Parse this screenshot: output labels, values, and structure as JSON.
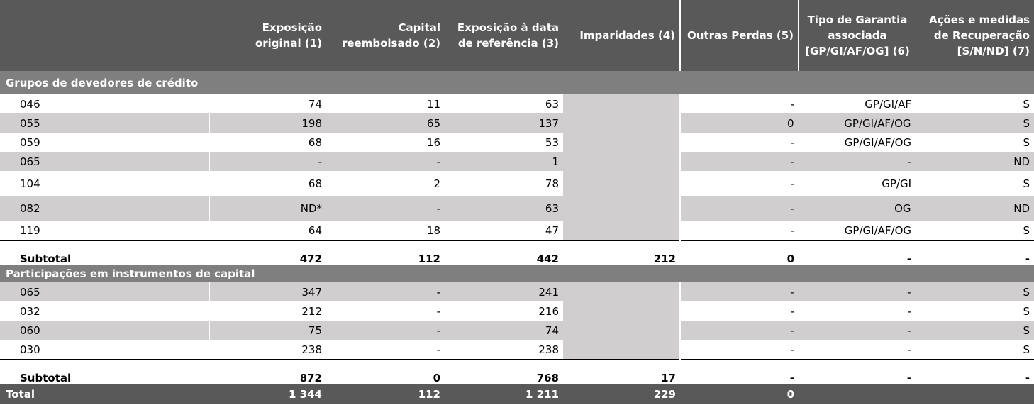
{
  "columns": {
    "c1": "Exposição original (1)",
    "c2": "Capital reembolsado (2)",
    "c3": "Exposição à data de referência (3)",
    "c4": "Imparidades (4)",
    "c5": "Outras Perdas (5)",
    "c6": "Tipo de Garantia associada [GP/GI/AF/OG] (6)",
    "c7": "Ações e medidas de Recuperação [S/N/ND] (7)"
  },
  "section1": {
    "title": "Grupos de devedores de crédito",
    "rows": [
      {
        "id": "046",
        "c1": "74",
        "c2": "11",
        "c3": "63",
        "c5": "-",
        "c6": "GP/GI/AF",
        "c7": "S"
      },
      {
        "id": "055",
        "c1": "198",
        "c2": "65",
        "c3": "137",
        "c5": "0",
        "c6": "GP/GI/AF/OG",
        "c7": "S"
      },
      {
        "id": "059",
        "c1": "68",
        "c2": "16",
        "c3": "53",
        "c5": "-",
        "c6": "GP/GI/AF/OG",
        "c7": "S"
      },
      {
        "id": "065",
        "c1": "-",
        "c2": "-",
        "c3": "1",
        "c5": "-",
        "c6": "-",
        "c7": "ND"
      },
      {
        "id": "104",
        "c1": "68",
        "c2": "2",
        "c3": "78",
        "c5": "-",
        "c6": "GP/GI",
        "c7": "S"
      },
      {
        "id": "082",
        "c1": "ND*",
        "c2": "-",
        "c3": "63",
        "c5": "-",
        "c6": "OG",
        "c7": "ND"
      },
      {
        "id": "119",
        "c1": "64",
        "c2": "18",
        "c3": "47",
        "c5": "-",
        "c6": "GP/GI/AF/OG",
        "c7": "S"
      }
    ],
    "subtotal": {
      "label": "Subtotal",
      "c1": "472",
      "c2": "112",
      "c3": "442",
      "c4": "212",
      "c5": "0",
      "c6": "-",
      "c7": "-"
    }
  },
  "section2": {
    "title": "Participações em instrumentos de capital",
    "rows": [
      {
        "id": "065",
        "c1": "347",
        "c2": "-",
        "c3": "241",
        "c5": "-",
        "c6": "-",
        "c7": "S"
      },
      {
        "id": "032",
        "c1": "212",
        "c2": "-",
        "c3": "216",
        "c5": "-",
        "c6": "-",
        "c7": "S"
      },
      {
        "id": "060",
        "c1": "75",
        "c2": "-",
        "c3": "74",
        "c5": "-",
        "c6": "-",
        "c7": "S"
      },
      {
        "id": "030",
        "c1": "238",
        "c2": "-",
        "c3": "238",
        "c5": "-",
        "c6": "-",
        "c7": "S"
      }
    ],
    "subtotal": {
      "label": "Subtotal",
      "c1": "872",
      "c2": "0",
      "c3": "768",
      "c4": "17",
      "c5": "-",
      "c6": "-",
      "c7": "-"
    }
  },
  "total": {
    "label": "Total",
    "c1": "1 344",
    "c2": "112",
    "c3": "1 211",
    "c4": "229",
    "c5": "0"
  }
}
